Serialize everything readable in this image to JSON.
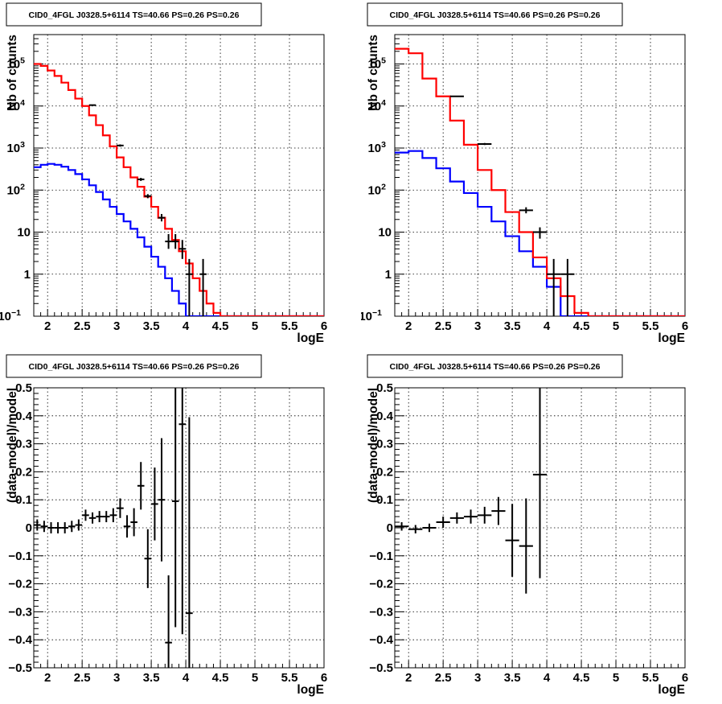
{
  "chart_data": [
    {
      "type": "line",
      "panel": "top-left",
      "title": "CID0_4FGL J0328.5+6114 TS=40.66 PS=0.26 PS=0.26",
      "xlabel": "logE",
      "ylabel": "Nb of counts",
      "xlim": [
        1.8,
        6.0
      ],
      "ylim": [
        0.1,
        500000
      ],
      "yscale": "log",
      "grid": true,
      "xticks": [
        "2",
        "2.5",
        "3",
        "3.5",
        "4",
        "4.5",
        "5",
        "5.5",
        "6"
      ],
      "yticks": [
        {
          "base": "10",
          "exp": "−1",
          "value": 0.1
        },
        {
          "base": "1",
          "exp": "",
          "value": 1
        },
        {
          "base": "10",
          "exp": "",
          "value": 10
        },
        {
          "base": "10",
          "exp": "2",
          "value": 100
        },
        {
          "base": "10",
          "exp": "3",
          "value": 1000
        },
        {
          "base": "10",
          "exp": "4",
          "value": 10000
        },
        {
          "base": "10",
          "exp": "5",
          "value": 100000
        }
      ],
      "bin_edges": [
        1.8,
        1.9,
        2.0,
        2.1,
        2.2,
        2.3,
        2.4,
        2.5,
        2.6,
        2.7,
        2.8,
        2.9,
        3.0,
        3.1,
        3.2,
        3.3,
        3.4,
        3.5,
        3.6,
        3.7,
        3.8,
        3.9,
        4.0,
        4.1,
        4.2,
        4.3,
        4.4,
        4.5,
        4.6,
        4.7,
        4.8,
        4.9,
        5.0,
        5.1,
        5.2,
        5.3,
        5.4,
        5.5,
        5.6,
        5.7,
        5.8,
        5.9,
        6.0
      ],
      "series": [
        {
          "color": "#ff0000",
          "values": [
            100000,
            90000,
            70000,
            52000,
            36000,
            24000,
            15000,
            10000,
            6000,
            3500,
            2000,
            1100,
            600,
            350,
            200,
            120,
            70,
            40,
            22,
            12,
            6.5,
            3.5,
            1.8,
            0.8,
            0.4,
            0.2,
            0.12,
            0.1,
            0.1,
            0.1,
            0.1,
            0.1,
            0.1,
            0.1,
            0.1,
            0.1,
            0.1,
            0.1,
            0.1,
            0.1,
            0.1,
            0.1
          ]
        },
        {
          "color": "#0000ff",
          "values": [
            350,
            400,
            420,
            400,
            360,
            300,
            240,
            180,
            130,
            90,
            60,
            40,
            27,
            18,
            12,
            7.5,
            4.5,
            2.6,
            1.5,
            0.8,
            0.4,
            0.2,
            0.1,
            0.1,
            0.1,
            0.1,
            0.1,
            0.1,
            0.1,
            0.1,
            0.1,
            0.1,
            0.1,
            0.1,
            0.1,
            0.1,
            0.1,
            0.1,
            0.1,
            0.1,
            0.1,
            0.1
          ]
        }
      ],
      "data_points": [
        {
          "x": 2.65,
          "y": 10500,
          "ylo": 10300,
          "yhi": 10700
        },
        {
          "x": 3.05,
          "y": 1150,
          "ylo": 1080,
          "yhi": 1220
        },
        {
          "x": 3.35,
          "y": 180,
          "ylo": 165,
          "yhi": 195
        },
        {
          "x": 3.45,
          "y": 72,
          "ylo": 64,
          "yhi": 80
        },
        {
          "x": 3.65,
          "y": 22,
          "ylo": 18,
          "yhi": 27
        },
        {
          "x": 3.75,
          "y": 6,
          "ylo": 4,
          "yhi": 9
        },
        {
          "x": 3.85,
          "y": 6,
          "ylo": 4,
          "yhi": 9
        },
        {
          "x": 3.95,
          "y": 4,
          "ylo": 2.3,
          "yhi": 6.5
        },
        {
          "x": 4.05,
          "y": 1,
          "ylo": 0.1,
          "yhi": 2.3
        },
        {
          "x": 4.25,
          "y": 1,
          "ylo": 0.1,
          "yhi": 2.3
        }
      ]
    },
    {
      "type": "line",
      "panel": "top-right",
      "title": "CID0_4FGL J0328.5+6114 TS=40.66 PS=0.26 PS=0.26",
      "xlabel": "logE",
      "ylabel": "Nb of counts",
      "xlim": [
        1.8,
        6.0
      ],
      "ylim": [
        0.1,
        500000
      ],
      "yscale": "log",
      "grid": true,
      "xticks": [
        "2",
        "2.5",
        "3",
        "3.5",
        "4",
        "4.5",
        "5",
        "5.5",
        "6"
      ],
      "yticks": [
        {
          "base": "10",
          "exp": "−1",
          "value": 0.1
        },
        {
          "base": "1",
          "exp": "",
          "value": 1
        },
        {
          "base": "10",
          "exp": "",
          "value": 10
        },
        {
          "base": "10",
          "exp": "2",
          "value": 100
        },
        {
          "base": "10",
          "exp": "3",
          "value": 1000
        },
        {
          "base": "10",
          "exp": "4",
          "value": 10000
        },
        {
          "base": "10",
          "exp": "5",
          "value": 100000
        }
      ],
      "bin_edges": [
        1.8,
        2.0,
        2.2,
        2.4,
        2.6,
        2.8,
        3.0,
        3.2,
        3.4,
        3.6,
        3.8,
        4.0,
        4.2,
        4.4,
        4.6,
        4.8,
        5.0,
        5.2,
        5.4,
        5.6,
        5.8,
        6.0
      ],
      "series": [
        {
          "color": "#ff0000",
          "values": [
            230000,
            180000,
            45000,
            17000,
            4500,
            1200,
            300,
            100,
            30,
            10,
            2.5,
            0.8,
            0.3,
            0.12,
            0.1,
            0.1,
            0.1,
            0.1,
            0.1,
            0.1,
            0.1
          ]
        },
        {
          "color": "#0000ff",
          "values": [
            780,
            850,
            580,
            330,
            160,
            85,
            40,
            18,
            8,
            3.5,
            1.5,
            0.5,
            0.1,
            0.1,
            0.1,
            0.1,
            0.1,
            0.1,
            0.1,
            0.1,
            0.1
          ]
        }
      ],
      "data_points": [
        {
          "x": 2.7,
          "y": 17000,
          "ylo": 16700,
          "yhi": 17300
        },
        {
          "x": 3.1,
          "y": 1250,
          "ylo": 1180,
          "yhi": 1320
        },
        {
          "x": 3.7,
          "y": 33,
          "ylo": 28,
          "yhi": 39
        },
        {
          "x": 3.9,
          "y": 10,
          "ylo": 7,
          "yhi": 13
        },
        {
          "x": 4.1,
          "y": 1,
          "ylo": 0.1,
          "yhi": 2.3
        },
        {
          "x": 4.3,
          "y": 1,
          "ylo": 0.1,
          "yhi": 2.3
        }
      ]
    },
    {
      "type": "scatter",
      "panel": "bottom-left",
      "title": "CID0_4FGL J0328.5+6114 TS=40.66 PS=0.26 PS=0.26",
      "xlabel": "logE",
      "ylabel": "(data-model)/model",
      "xlim": [
        1.8,
        6.0
      ],
      "ylim": [
        -0.5,
        0.5
      ],
      "yscale": "linear",
      "grid": true,
      "xticks": [
        "2",
        "2.5",
        "3",
        "3.5",
        "4",
        "4.5",
        "5",
        "5.5",
        "6"
      ],
      "yticks": [
        "−0.5",
        "−0.4",
        "−0.3",
        "−0.2",
        "−0.1",
        "0",
        "0.1",
        "0.2",
        "0.3",
        "0.4",
        "0.5"
      ],
      "bin_width": 0.1,
      "points": [
        {
          "x": 1.85,
          "y": 0.01,
          "err": 0.02
        },
        {
          "x": 1.95,
          "y": 0.005,
          "err": 0.02
        },
        {
          "x": 2.05,
          "y": 0.0,
          "err": 0.02
        },
        {
          "x": 2.15,
          "y": 0.0,
          "err": 0.02
        },
        {
          "x": 2.25,
          "y": 0.0,
          "err": 0.02
        },
        {
          "x": 2.35,
          "y": 0.005,
          "err": 0.02
        },
        {
          "x": 2.45,
          "y": 0.01,
          "err": 0.02
        },
        {
          "x": 2.55,
          "y": 0.045,
          "err": 0.02
        },
        {
          "x": 2.65,
          "y": 0.035,
          "err": 0.02
        },
        {
          "x": 2.75,
          "y": 0.04,
          "err": 0.02
        },
        {
          "x": 2.85,
          "y": 0.04,
          "err": 0.02
        },
        {
          "x": 2.95,
          "y": 0.045,
          "err": 0.025
        },
        {
          "x": 3.05,
          "y": 0.07,
          "err": 0.035
        },
        {
          "x": 3.15,
          "y": 0.005,
          "err": 0.04
        },
        {
          "x": 3.25,
          "y": 0.02,
          "err": 0.05
        },
        {
          "x": 3.35,
          "y": 0.15,
          "err": 0.085
        },
        {
          "x": 3.45,
          "y": -0.11,
          "err": 0.105
        },
        {
          "x": 3.55,
          "y": 0.085,
          "err": 0.13
        },
        {
          "x": 3.65,
          "y": 0.1,
          "err": 0.22
        },
        {
          "x": 3.75,
          "y": -0.41,
          "err": 0.24
        },
        {
          "x": 3.85,
          "y": 0.095,
          "err": 0.45
        },
        {
          "x": 3.95,
          "y": 0.37,
          "err": 0.75
        },
        {
          "x": 4.05,
          "y": -0.305,
          "err": 0.7
        }
      ]
    },
    {
      "type": "scatter",
      "panel": "bottom-right",
      "title": "CID0_4FGL J0328.5+6114 TS=40.66 PS=0.26 PS=0.26",
      "xlabel": "logE",
      "ylabel": "(data-model)/model",
      "xlim": [
        1.8,
        6.0
      ],
      "ylim": [
        -0.5,
        0.5
      ],
      "yscale": "linear",
      "grid": true,
      "xticks": [
        "2",
        "2.5",
        "3",
        "3.5",
        "4",
        "4.5",
        "5",
        "5.5",
        "6"
      ],
      "yticks": [
        "−0.5",
        "−0.4",
        "−0.3",
        "−0.2",
        "−0.1",
        "0",
        "0.1",
        "0.2",
        "0.3",
        "0.4",
        "0.5"
      ],
      "bin_width": 0.2,
      "points": [
        {
          "x": 1.9,
          "y": 0.005,
          "err": 0.015
        },
        {
          "x": 2.1,
          "y": -0.005,
          "err": 0.015
        },
        {
          "x": 2.3,
          "y": 0.0,
          "err": 0.015
        },
        {
          "x": 2.5,
          "y": 0.02,
          "err": 0.02
        },
        {
          "x": 2.7,
          "y": 0.035,
          "err": 0.02
        },
        {
          "x": 2.9,
          "y": 0.04,
          "err": 0.025
        },
        {
          "x": 3.1,
          "y": 0.045,
          "err": 0.03
        },
        {
          "x": 3.3,
          "y": 0.06,
          "err": 0.05
        },
        {
          "x": 3.5,
          "y": -0.045,
          "err": 0.13
        },
        {
          "x": 3.7,
          "y": -0.065,
          "err": 0.17
        },
        {
          "x": 3.9,
          "y": 0.19,
          "err": 0.37
        }
      ]
    }
  ]
}
